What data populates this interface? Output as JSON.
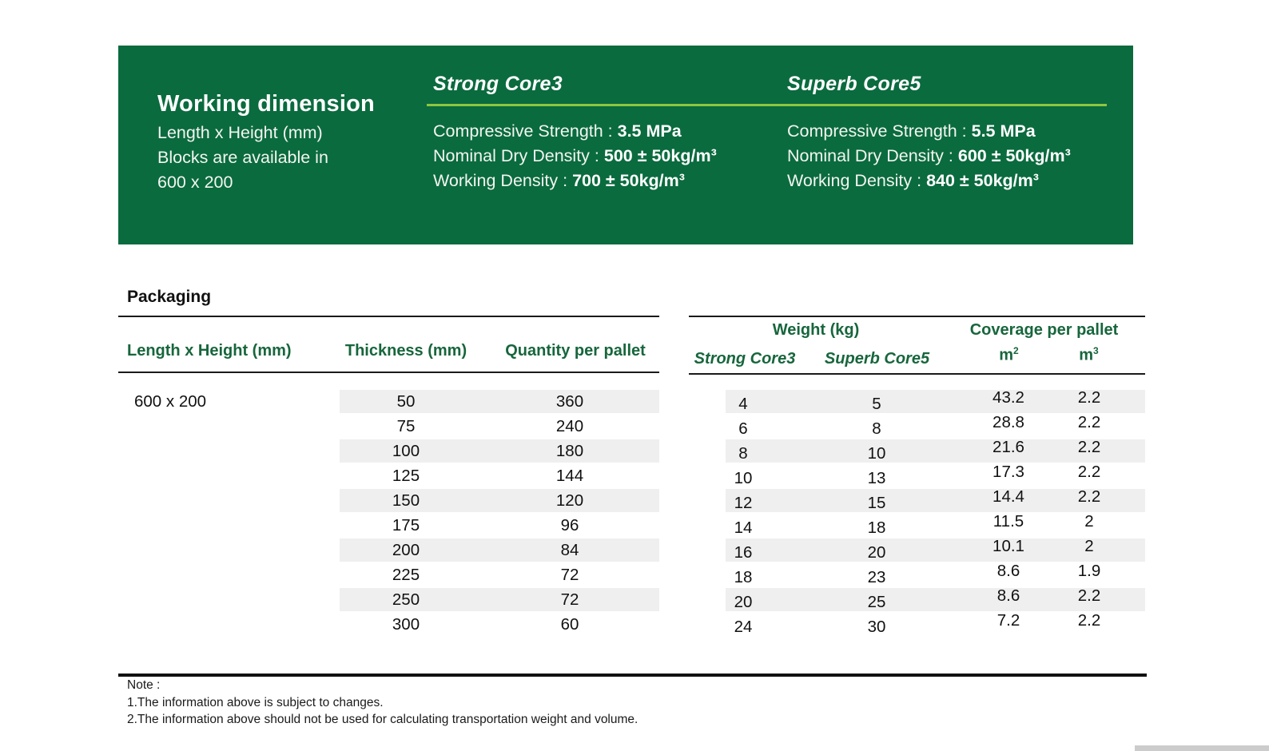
{
  "colors": {
    "banner_green": "#0a6b3e",
    "lime_accent": "#8dc63f",
    "heading_green": "#17663c",
    "row_stripe": "#efefef"
  },
  "banner": {
    "working_dimension": {
      "title": "Working dimension",
      "line1": "Length x Height (mm)",
      "line2": "Blocks are available in",
      "line3": "600 x 200"
    },
    "products": [
      {
        "name": "Strong Core3",
        "specs": [
          {
            "label": "Compressive Strength : ",
            "value": "3.5 MPa"
          },
          {
            "label": "Nominal Dry Density : ",
            "value": "500 ± 50kg/m³"
          },
          {
            "label": "Working Density : ",
            "value": "700 ± 50kg/m³"
          }
        ]
      },
      {
        "name": "Superb Core5",
        "specs": [
          {
            "label": "Compressive Strength : ",
            "value": "5.5 MPa"
          },
          {
            "label": "Nominal Dry Density : ",
            "value": "600 ± 50kg/m³"
          },
          {
            "label": "Working Density : ",
            "value": "840 ± 50kg/m³"
          }
        ]
      }
    ]
  },
  "packaging": {
    "title": "Packaging",
    "left_table": {
      "headers": {
        "size": "Length x Height (mm)",
        "thickness": "Thickness (mm)",
        "quantity": "Quantity per pallet"
      },
      "size_value": "600 x 200",
      "rows": [
        [
          "50",
          "360"
        ],
        [
          "75",
          "240"
        ],
        [
          "100",
          "180"
        ],
        [
          "125",
          "144"
        ],
        [
          "150",
          "120"
        ],
        [
          "175",
          "96"
        ],
        [
          "200",
          "84"
        ],
        [
          "225",
          "72"
        ],
        [
          "250",
          "72"
        ],
        [
          "300",
          "60"
        ]
      ]
    },
    "right_table": {
      "group_headers": {
        "weight": "Weight  (kg)",
        "coverage": "Coverage per pallet"
      },
      "sub_headers": {
        "strong": "Strong Core3",
        "superb": "Superb Core5",
        "m2_base": "m",
        "m2_sup": "2",
        "m3_base": "m",
        "m3_sup": "3"
      },
      "rows": [
        [
          "4",
          "5",
          "43.2",
          "2.2"
        ],
        [
          "6",
          "8",
          "28.8",
          "2.2"
        ],
        [
          "8",
          "10",
          "21.6",
          "2.2"
        ],
        [
          "10",
          "13",
          "17.3",
          "2.2"
        ],
        [
          "12",
          "15",
          "14.4",
          "2.2"
        ],
        [
          "14",
          "18",
          "11.5",
          "2"
        ],
        [
          "16",
          "20",
          "10.1",
          "2"
        ],
        [
          "18",
          "23",
          "8.6",
          "1.9"
        ],
        [
          "20",
          "25",
          "8.6",
          "2.2"
        ],
        [
          "24",
          "30",
          "7.2",
          "2.2"
        ]
      ]
    }
  },
  "note": {
    "title": "Note :",
    "line1": "1.The information above is subject to changes.",
    "line2": "2.The information above should not be used for calculating transportation weight and volume."
  }
}
